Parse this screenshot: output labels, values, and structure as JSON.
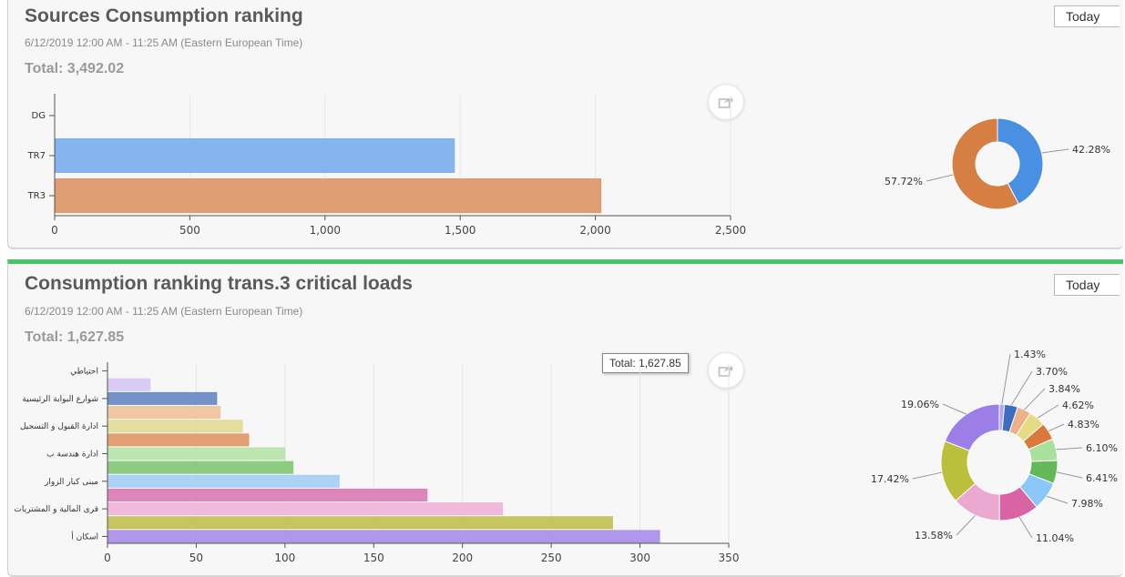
{
  "panels": [
    {
      "title": "Sources Consumption ranking",
      "subtitle": "6/12/2019 12:00 AM - 11:25 AM (Eastern European Time)",
      "total": "Total: 3,492.02",
      "range_label": "Today"
    },
    {
      "title": "Consumption ranking trans.3 critical loads",
      "subtitle": "6/12/2019 12:00 AM - 11:25 AM (Eastern European Time)",
      "total": "Total: 1,627.85",
      "range_label": "Today",
      "tooltip": "Total: 1,627.85"
    }
  ],
  "icons": {
    "share": "share-icon"
  },
  "chart_data": [
    {
      "type": "bar",
      "orientation": "horizontal",
      "categories": [
        "DG",
        "TR7",
        "TR3"
      ],
      "values": [
        0,
        1475,
        2017
      ],
      "colors": [
        "#7eb0ee",
        "#7eb0ee",
        "#dd9a6c"
      ],
      "xlim": [
        0,
        2500
      ],
      "xticks": [
        0,
        500,
        1000,
        1500,
        2000,
        2500
      ],
      "xtick_labels": [
        "0",
        "500",
        "1,000",
        "1,500",
        "2,000",
        "2,500"
      ],
      "grid": true
    },
    {
      "type": "pie",
      "donut": true,
      "values": [
        42.28,
        57.72
      ],
      "labels": [
        "42.28%",
        "57.72%"
      ],
      "colors": [
        "#4a90e2",
        "#d57f43"
      ]
    },
    {
      "type": "bar",
      "orientation": "horizontal",
      "categories": [
        "احتياطي",
        "",
        "شوارع البوابة الرئيسية",
        "",
        "ادارة القبول و التسجيل",
        "",
        "ادارة هندسة ب",
        "",
        "مبنى كبار الزوار",
        "",
        "قرى المالية و المشتريات",
        "",
        "اسكان أ"
      ],
      "values": [
        0,
        23.5,
        61,
        63,
        75.5,
        79,
        99.5,
        104,
        130,
        179.5,
        222,
        284,
        310.5
      ],
      "colors": [
        "#b19dec",
        "#d8c8f4",
        "#6d8cc4",
        "#efc3a0",
        "#e2dc98",
        "#e19a6a",
        "#b8e4ae",
        "#86c979",
        "#a8d0f5",
        "#dc7fb8",
        "#efb6da",
        "#c4c25a",
        "#ac91e8"
      ],
      "xlim": [
        0,
        350
      ],
      "xticks": [
        0,
        50,
        100,
        150,
        200,
        250,
        300,
        350
      ],
      "xtick_labels": [
        "0",
        "50",
        "100",
        "150",
        "200",
        "250",
        "300",
        "350"
      ],
      "grid": true
    },
    {
      "type": "pie",
      "donut": true,
      "values": [
        1.43,
        3.7,
        3.84,
        4.62,
        4.83,
        6.1,
        6.41,
        7.98,
        11.04,
        13.58,
        17.42,
        19.06
      ],
      "labels": [
        "1.43%",
        "3.70%",
        "3.84%",
        "4.62%",
        "4.83%",
        "6.10%",
        "6.41%",
        "7.98%",
        "11.04%",
        "13.58%",
        "17.42%",
        "19.06%"
      ],
      "colors": [
        "#b3a5ee",
        "#3e6cc0",
        "#efb18c",
        "#e4db83",
        "#d97a3c",
        "#a9e09d",
        "#63b957",
        "#8bc7f7",
        "#d864a6",
        "#eba9d2",
        "#babf3c",
        "#9b7fe6"
      ]
    }
  ]
}
